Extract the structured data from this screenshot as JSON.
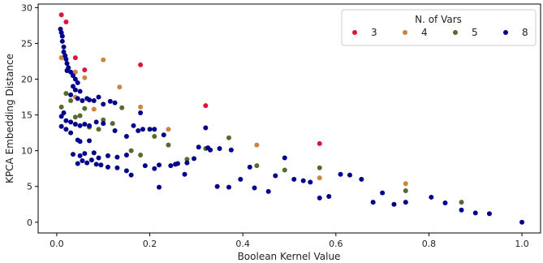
{
  "chart_data": {
    "type": "scatter",
    "xlabel": "Boolean Kernel Value",
    "ylabel": "KPCA Embedding Distance",
    "xlim": [
      -0.04,
      1.04
    ],
    "ylim": [
      -1.5,
      30.5
    ],
    "xticks": [
      "0.0",
      "0.2",
      "0.4",
      "0.6",
      "0.8",
      "1.0"
    ],
    "xtick_values": [
      0.0,
      0.2,
      0.4,
      0.6,
      0.8,
      1.0
    ],
    "yticks": [
      "0",
      "5",
      "10",
      "15",
      "20",
      "25",
      "30"
    ],
    "ytick_values": [
      0,
      5,
      10,
      15,
      20,
      25,
      30
    ],
    "grid": false,
    "legend": {
      "title": "N. of Vars",
      "placement": "top-right",
      "columns": 4
    },
    "series": [
      {
        "name": "3",
        "color": "#dc143c",
        "points": [
          [
            0.01,
            29.0
          ],
          [
            0.02,
            28.0
          ],
          [
            0.04,
            23.0
          ],
          [
            0.06,
            21.3
          ],
          [
            0.18,
            22.0
          ],
          [
            0.32,
            16.3
          ],
          [
            0.565,
            11.0
          ]
        ]
      },
      {
        "name": "4",
        "color": "#cd853f",
        "points": [
          [
            0.01,
            23.0
          ],
          [
            0.04,
            21.0
          ],
          [
            0.06,
            20.2
          ],
          [
            0.1,
            22.7
          ],
          [
            0.04,
            17.5
          ],
          [
            0.08,
            15.8
          ],
          [
            0.135,
            18.9
          ],
          [
            0.18,
            16.1
          ],
          [
            0.24,
            13.0
          ],
          [
            0.43,
            10.8
          ],
          [
            0.565,
            6.2
          ],
          [
            0.75,
            5.4
          ]
        ]
      },
      {
        "name": "5",
        "color": "#556b2f",
        "points": [
          [
            0.01,
            16.1
          ],
          [
            0.02,
            18.0
          ],
          [
            0.03,
            17.0
          ],
          [
            0.04,
            14.7
          ],
          [
            0.05,
            14.9
          ],
          [
            0.06,
            15.9
          ],
          [
            0.07,
            13.3
          ],
          [
            0.09,
            13.0
          ],
          [
            0.1,
            14.3
          ],
          [
            0.12,
            13.8
          ],
          [
            0.14,
            16.0
          ],
          [
            0.16,
            10.0
          ],
          [
            0.18,
            9.4
          ],
          [
            0.21,
            12.0
          ],
          [
            0.24,
            10.8
          ],
          [
            0.28,
            8.8
          ],
          [
            0.32,
            10.3
          ],
          [
            0.37,
            11.8
          ],
          [
            0.43,
            7.9
          ],
          [
            0.49,
            7.3
          ],
          [
            0.565,
            7.6
          ],
          [
            0.75,
            4.4
          ],
          [
            0.87,
            2.8
          ]
        ]
      },
      {
        "name": "8",
        "color": "#00008b",
        "points": [
          [
            0.008,
            27.0
          ],
          [
            0.01,
            26.5
          ],
          [
            0.012,
            26.0
          ],
          [
            0.012,
            25.3
          ],
          [
            0.015,
            24.5
          ],
          [
            0.015,
            23.8
          ],
          [
            0.018,
            23.3
          ],
          [
            0.02,
            22.8
          ],
          [
            0.022,
            22.2
          ],
          [
            0.025,
            21.6
          ],
          [
            0.022,
            21.2
          ],
          [
            0.03,
            21.0
          ],
          [
            0.035,
            20.5
          ],
          [
            0.04,
            20.0
          ],
          [
            0.045,
            19.5
          ],
          [
            0.035,
            19.0
          ],
          [
            0.04,
            18.5
          ],
          [
            0.05,
            18.3
          ],
          [
            0.03,
            17.8
          ],
          [
            0.045,
            17.3
          ],
          [
            0.055,
            17.0
          ],
          [
            0.065,
            17.3
          ],
          [
            0.07,
            17.1
          ],
          [
            0.08,
            17.0
          ],
          [
            0.09,
            17.5
          ],
          [
            0.1,
            16.5
          ],
          [
            0.115,
            16.9
          ],
          [
            0.125,
            16.7
          ],
          [
            0.01,
            14.8
          ],
          [
            0.015,
            15.3
          ],
          [
            0.02,
            14.2
          ],
          [
            0.03,
            14.0
          ],
          [
            0.04,
            13.7
          ],
          [
            0.05,
            13.5
          ],
          [
            0.06,
            13.7
          ],
          [
            0.07,
            13.5
          ],
          [
            0.085,
            14.0
          ],
          [
            0.1,
            13.8
          ],
          [
            0.125,
            12.8
          ],
          [
            0.15,
            12.0
          ],
          [
            0.165,
            13.5
          ],
          [
            0.175,
            12.8
          ],
          [
            0.185,
            13.0
          ],
          [
            0.2,
            13.0
          ],
          [
            0.23,
            12.2
          ],
          [
            0.21,
            13.0
          ],
          [
            0.01,
            13.4
          ],
          [
            0.02,
            13.0
          ],
          [
            0.03,
            12.5
          ],
          [
            0.045,
            11.5
          ],
          [
            0.05,
            11.3
          ],
          [
            0.07,
            11.4
          ],
          [
            0.18,
            15.3
          ],
          [
            0.32,
            13.2
          ],
          [
            0.035,
            9.5
          ],
          [
            0.05,
            9.3
          ],
          [
            0.06,
            9.6
          ],
          [
            0.08,
            9.7
          ],
          [
            0.09,
            9.0
          ],
          [
            0.11,
            9.3
          ],
          [
            0.13,
            9.1
          ],
          [
            0.15,
            9.4
          ],
          [
            0.045,
            8.2
          ],
          [
            0.055,
            8.6
          ],
          [
            0.065,
            8.3
          ],
          [
            0.075,
            8.7
          ],
          [
            0.085,
            8.1
          ],
          [
            0.095,
            8.0
          ],
          [
            0.11,
            7.7
          ],
          [
            0.13,
            7.6
          ],
          [
            0.15,
            7.2
          ],
          [
            0.16,
            6.6
          ],
          [
            0.19,
            7.9
          ],
          [
            0.21,
            7.5
          ],
          [
            0.22,
            8.0
          ],
          [
            0.245,
            7.9
          ],
          [
            0.255,
            8.1
          ],
          [
            0.26,
            8.2
          ],
          [
            0.275,
            6.7
          ],
          [
            0.28,
            8.3
          ],
          [
            0.295,
            8.9
          ],
          [
            0.305,
            10.5
          ],
          [
            0.33,
            10.1
          ],
          [
            0.35,
            10.3
          ],
          [
            0.325,
            10.4
          ],
          [
            0.375,
            10.1
          ],
          [
            0.22,
            4.9
          ],
          [
            0.345,
            5.0
          ],
          [
            0.37,
            4.9
          ],
          [
            0.395,
            6.0
          ],
          [
            0.415,
            7.7
          ],
          [
            0.425,
            4.8
          ],
          [
            0.455,
            4.3
          ],
          [
            0.47,
            6.5
          ],
          [
            0.49,
            9.0
          ],
          [
            0.51,
            6.0
          ],
          [
            0.53,
            5.8
          ],
          [
            0.545,
            5.6
          ],
          [
            0.565,
            3.4
          ],
          [
            0.585,
            3.6
          ],
          [
            0.61,
            6.7
          ],
          [
            0.63,
            6.6
          ],
          [
            0.655,
            6.0
          ],
          [
            0.68,
            2.8
          ],
          [
            0.7,
            4.1
          ],
          [
            0.725,
            2.5
          ],
          [
            0.75,
            2.8
          ],
          [
            0.805,
            3.5
          ],
          [
            0.835,
            2.7
          ],
          [
            0.87,
            1.7
          ],
          [
            0.9,
            1.3
          ],
          [
            0.93,
            1.2
          ],
          [
            1.0,
            0.0
          ]
        ]
      }
    ]
  }
}
